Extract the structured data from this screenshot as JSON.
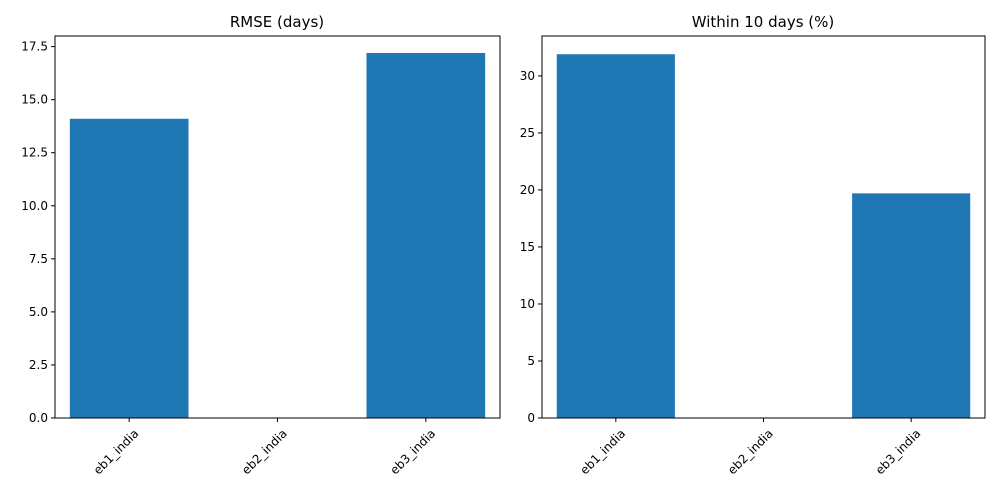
{
  "chart_data": [
    {
      "type": "bar",
      "title": "RMSE (days)",
      "xlabel": "",
      "ylabel": "",
      "categories": [
        "eb1_india",
        "eb2_india",
        "eb3_india"
      ],
      "values": [
        14.1,
        null,
        17.2
      ],
      "ylim": [
        0,
        18.0
      ],
      "yticks": [
        0.0,
        2.5,
        5.0,
        7.5,
        10.0,
        12.5,
        15.0,
        17.5
      ],
      "ytick_labels": [
        "0.0",
        "2.5",
        "5.0",
        "7.5",
        "10.0",
        "12.5",
        "15.0",
        "17.5"
      ],
      "bar_color": "#1f77b4",
      "grid": false,
      "legend": "none"
    },
    {
      "type": "bar",
      "title": "Within 10 days (%)",
      "xlabel": "",
      "ylabel": "",
      "categories": [
        "eb1_india",
        "eb2_india",
        "eb3_india"
      ],
      "values": [
        31.9,
        null,
        19.7
      ],
      "ylim": [
        0,
        33.5
      ],
      "yticks": [
        0,
        5,
        10,
        15,
        20,
        25,
        30
      ],
      "ytick_labels": [
        "0",
        "5",
        "10",
        "15",
        "20",
        "25",
        "30"
      ],
      "bar_color": "#1f77b4",
      "grid": false,
      "legend": "none"
    }
  ]
}
